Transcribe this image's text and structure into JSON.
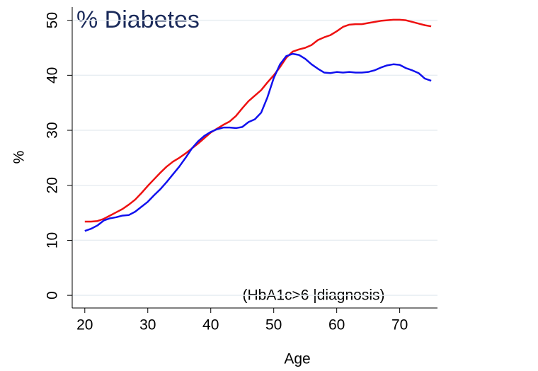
{
  "chart_data": {
    "type": "line",
    "title": "% Diabetes",
    "annotation": "(HbA1c>6 |diagnosis)",
    "x_label": "Age",
    "y_label": "%",
    "x": [
      20,
      21,
      22,
      23,
      24,
      25,
      26,
      27,
      28,
      29,
      30,
      31,
      32,
      33,
      34,
      35,
      36,
      37,
      38,
      39,
      40,
      41,
      42,
      43,
      44,
      45,
      46,
      47,
      48,
      49,
      50,
      51,
      52,
      53,
      54,
      55,
      56,
      57,
      58,
      59,
      60,
      61,
      62,
      63,
      64,
      65,
      66,
      67,
      68,
      69,
      70,
      71,
      72,
      73,
      74,
      75
    ],
    "series": [
      {
        "color": "#ee1111",
        "values": [
          13.4,
          13.4,
          13.5,
          13.9,
          14.5,
          15.1,
          15.7,
          16.5,
          17.4,
          18.6,
          19.9,
          21.1,
          22.3,
          23.4,
          24.3,
          25.0,
          25.8,
          26.7,
          27.6,
          28.6,
          29.6,
          30.3,
          31.0,
          31.6,
          32.6,
          34.0,
          35.3,
          36.3,
          37.3,
          38.7,
          40.0,
          41.5,
          43.2,
          44.3,
          44.7,
          45.0,
          45.5,
          46.4,
          46.9,
          47.3,
          48.0,
          48.8,
          49.2,
          49.3,
          49.3,
          49.5,
          49.7,
          49.9,
          50.0,
          50.1,
          50.1,
          50.0,
          49.7,
          49.4,
          49.1,
          48.9
        ]
      },
      {
        "color": "#1111ee",
        "values": [
          11.7,
          12.1,
          12.7,
          13.6,
          14.0,
          14.2,
          14.5,
          14.6,
          15.2,
          16.1,
          17.0,
          18.2,
          19.3,
          20.6,
          22.0,
          23.4,
          25.0,
          26.7,
          28.0,
          29.0,
          29.7,
          30.2,
          30.5,
          30.5,
          30.4,
          30.6,
          31.5,
          32.0,
          33.2,
          36.0,
          39.5,
          42.0,
          43.5,
          43.9,
          43.7,
          43.0,
          42.0,
          41.2,
          40.5,
          40.4,
          40.6,
          40.5,
          40.6,
          40.5,
          40.5,
          40.6,
          40.9,
          41.4,
          41.8,
          42.0,
          41.9,
          41.3,
          40.9,
          40.4,
          39.4,
          39.0
        ]
      }
    ],
    "xlim": [
      18,
      76
    ],
    "ylim": [
      -2.3,
      52.4
    ],
    "xticks": [
      20,
      30,
      40,
      50,
      60,
      70
    ],
    "yticks": [
      0,
      10,
      20,
      30,
      40,
      50
    ],
    "grid": true
  }
}
